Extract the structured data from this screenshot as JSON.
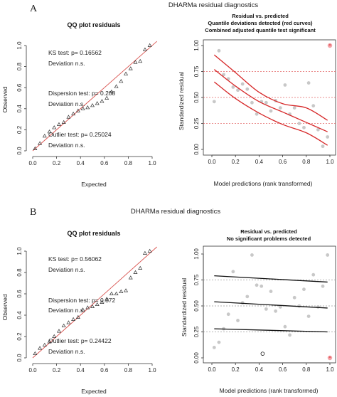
{
  "figure": {
    "panels": [
      {
        "letter": "A",
        "suptitle": "DHARMa residual diagnostics",
        "qq": {
          "title": "QQ plot residuals",
          "xlabel": "Expected",
          "ylabel": "Observed",
          "ks_test": "KS test: p= 0.16562",
          "ks_dev": "Deviation  n.s.",
          "disp_test": "Dispersion test: p= 0.208",
          "disp_dev": "Deviation  n.s.",
          "out_test": "Outlier test: p= 0.25024",
          "out_dev": "Deviation  n.s."
        },
        "rvp": {
          "title1": "Residual vs. predicted",
          "title2": "Quantile deviations detected (red curves)",
          "title3": "Combined adjusted quantile test significant",
          "xlabel": "Model predictions (rank transformed)",
          "ylabel": "Standardized residual"
        }
      },
      {
        "letter": "B",
        "suptitle": "DHARMa residual diagnostics",
        "qq": {
          "title": "QQ plot residuals",
          "xlabel": "Expected",
          "ylabel": "Observed",
          "ks_test": "KS test: p= 0.56062",
          "ks_dev": "Deviation  n.s.",
          "disp_test": "Dispersion test: p= 0.872",
          "disp_dev": "Deviation  n.s.",
          "out_test": "Outlier test: p= 0.24422",
          "out_dev": "Deviation  n.s."
        },
        "rvp": {
          "title1": "Residual vs. predicted",
          "title2": "No significant problems detected",
          "title3": "",
          "xlabel": "Model predictions (rank transformed)",
          "ylabel": "Standardized residual"
        }
      }
    ]
  },
  "chart_data": [
    {
      "type": "scatter",
      "panel": "A",
      "title": "QQ plot residuals",
      "xlabel": "Expected",
      "ylabel": "Observed",
      "xlim": [
        0,
        1
      ],
      "ylim": [
        0,
        1
      ],
      "x_ticks": [
        "0.0",
        "0.2",
        "0.4",
        "0.6",
        "0.8",
        "1.0"
      ],
      "y_ticks": [
        "0.0",
        "0.2",
        "0.4",
        "0.6",
        "0.8",
        "1.0"
      ],
      "reference_line": "red 1:1",
      "x": [
        0.02,
        0.06,
        0.1,
        0.14,
        0.18,
        0.22,
        0.26,
        0.3,
        0.34,
        0.38,
        0.42,
        0.46,
        0.5,
        0.54,
        0.58,
        0.62,
        0.66,
        0.7,
        0.74,
        0.78,
        0.82,
        0.86,
        0.9,
        0.94,
        0.98
      ],
      "y": [
        0.02,
        0.07,
        0.14,
        0.18,
        0.22,
        0.25,
        0.27,
        0.32,
        0.35,
        0.38,
        0.4,
        0.41,
        0.43,
        0.45,
        0.47,
        0.5,
        0.56,
        0.61,
        0.66,
        0.73,
        0.78,
        0.84,
        0.85,
        0.96,
        1.0
      ]
    },
    {
      "type": "scatter",
      "panel": "A",
      "title": "Residual vs. predicted",
      "xlabel": "Model predictions (rank transformed)",
      "ylabel": "Standardized residual",
      "xlim": [
        0,
        1
      ],
      "ylim": [
        0,
        1
      ],
      "x_ticks": [
        "0.0",
        "0.2",
        "0.4",
        "0.6",
        "0.8",
        "1.0"
      ],
      "y_ticks": [
        "0.00",
        "0.25",
        "0.50",
        "0.75",
        "1.00"
      ],
      "points": [
        [
          0.02,
          0.46
        ],
        [
          0.06,
          0.95
        ],
        [
          0.1,
          0.72
        ],
        [
          0.14,
          0.68
        ],
        [
          0.18,
          0.6
        ],
        [
          0.22,
          0.57
        ],
        [
          0.26,
          0.63
        ],
        [
          0.3,
          0.58
        ],
        [
          0.34,
          0.45
        ],
        [
          0.38,
          0.34
        ],
        [
          0.42,
          0.46
        ],
        [
          0.46,
          0.45
        ],
        [
          0.5,
          0.37
        ],
        [
          0.54,
          0.47
        ],
        [
          0.58,
          0.4
        ],
        [
          0.62,
          0.62
        ],
        [
          0.66,
          0.34
        ],
        [
          0.7,
          0.4
        ],
        [
          0.74,
          0.25
        ],
        [
          0.78,
          0.21
        ],
        [
          0.82,
          0.64
        ],
        [
          0.86,
          0.42
        ],
        [
          0.9,
          0.19
        ],
        [
          0.94,
          0.03
        ],
        [
          0.98,
          0.12
        ]
      ],
      "outlier_point": [
        1.0,
        1.0
      ],
      "reference_lines": [
        0.25,
        0.5,
        0.75
      ],
      "quantile_curves": [
        {
          "x": [
            0.02,
            0.2,
            0.4,
            0.6,
            0.8,
            0.98
          ],
          "y": [
            0.91,
            0.74,
            0.55,
            0.44,
            0.4,
            0.28
          ]
        },
        {
          "x": [
            0.02,
            0.2,
            0.4,
            0.6,
            0.8,
            0.98
          ],
          "y": [
            0.77,
            0.61,
            0.46,
            0.36,
            0.26,
            0.17
          ]
        },
        {
          "x": [
            0.02,
            0.2,
            0.4,
            0.6,
            0.8,
            0.98
          ],
          "y": [
            0.65,
            0.49,
            0.35,
            0.24,
            0.16,
            0.04
          ]
        }
      ]
    },
    {
      "type": "scatter",
      "panel": "B",
      "title": "QQ plot residuals",
      "xlabel": "Expected",
      "ylabel": "Observed",
      "xlim": [
        0,
        1
      ],
      "ylim": [
        0,
        1
      ],
      "x_ticks": [
        "0.0",
        "0.2",
        "0.4",
        "0.6",
        "0.8",
        "1.0"
      ],
      "y_ticks": [
        "0.0",
        "0.2",
        "0.4",
        "0.6",
        "0.8",
        "1.0"
      ],
      "reference_line": "red 1:1",
      "x": [
        0.02,
        0.06,
        0.1,
        0.14,
        0.18,
        0.22,
        0.26,
        0.3,
        0.34,
        0.38,
        0.42,
        0.46,
        0.5,
        0.54,
        0.58,
        0.62,
        0.66,
        0.7,
        0.74,
        0.78,
        0.82,
        0.86,
        0.9,
        0.94,
        0.98
      ],
      "y": [
        0.04,
        0.09,
        0.12,
        0.15,
        0.2,
        0.25,
        0.3,
        0.33,
        0.36,
        0.38,
        0.45,
        0.47,
        0.48,
        0.5,
        0.52,
        0.55,
        0.6,
        0.6,
        0.62,
        0.63,
        0.75,
        0.8,
        0.84,
        0.98,
        1.0
      ]
    },
    {
      "type": "scatter",
      "panel": "B",
      "title": "Residual vs. predicted",
      "xlabel": "Model predictions (rank transformed)",
      "ylabel": "Standardized residual",
      "xlim": [
        0,
        1
      ],
      "ylim": [
        0,
        1
      ],
      "x_ticks": [
        "0.0",
        "0.2",
        "0.4",
        "0.6",
        "0.8",
        "1.0"
      ],
      "y_ticks": [
        "0.00",
        "0.25",
        "0.50",
        "0.75",
        "1.00"
      ],
      "points": [
        [
          0.02,
          0.1
        ],
        [
          0.06,
          0.15
        ],
        [
          0.1,
          0.28
        ],
        [
          0.14,
          0.42
        ],
        [
          0.18,
          0.83
        ],
        [
          0.22,
          0.36
        ],
        [
          0.26,
          0.53
        ],
        [
          0.3,
          0.59
        ],
        [
          0.34,
          0.99
        ],
        [
          0.38,
          0.7
        ],
        [
          0.42,
          0.69
        ],
        [
          0.46,
          0.47
        ],
        [
          0.5,
          0.64
        ],
        [
          0.54,
          0.45
        ],
        [
          0.58,
          0.49
        ],
        [
          0.62,
          0.3
        ],
        [
          0.66,
          0.22
        ],
        [
          0.7,
          0.58
        ],
        [
          0.74,
          0.5
        ],
        [
          0.78,
          0.66
        ],
        [
          0.82,
          0.4
        ],
        [
          0.86,
          0.8
        ],
        [
          0.9,
          0.49
        ],
        [
          0.94,
          0.69
        ],
        [
          0.98,
          0.99
        ]
      ],
      "open_point": [
        0.43,
        0.04
      ],
      "outlier_point": [
        1.0,
        0.0
      ],
      "reference_lines": [
        0.25,
        0.5,
        0.75
      ],
      "quantile_lines": [
        {
          "x": [
            0.02,
            0.98
          ],
          "y": [
            0.79,
            0.73
          ]
        },
        {
          "x": [
            0.02,
            0.98
          ],
          "y": [
            0.54,
            0.48
          ]
        },
        {
          "x": [
            0.02,
            0.98
          ],
          "y": [
            0.28,
            0.25
          ]
        }
      ]
    }
  ]
}
